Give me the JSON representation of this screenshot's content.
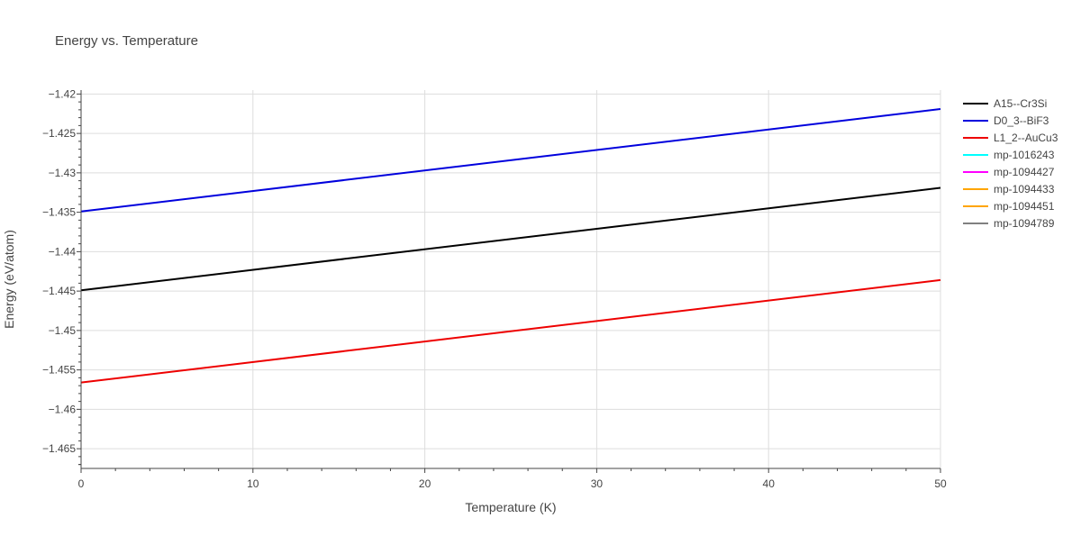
{
  "chart_data": {
    "type": "line",
    "title": "Energy vs. Temperature",
    "xlabel": "Temperature (K)",
    "ylabel": "Energy (eV/atom)",
    "xlim": [
      0,
      50
    ],
    "ylim": [
      -1.4675,
      -1.4195
    ],
    "x_ticks": [
      0,
      10,
      20,
      30,
      40,
      50
    ],
    "y_ticks": [
      -1.465,
      -1.46,
      -1.455,
      -1.45,
      -1.445,
      -1.44,
      -1.435,
      -1.43,
      -1.425,
      -1.42
    ],
    "y_tick_labels": [
      "−1.465",
      "−1.46",
      "−1.455",
      "−1.45",
      "−1.445",
      "−1.44",
      "−1.435",
      "−1.43",
      "−1.425",
      "−1.42"
    ],
    "grid": true,
    "legend_position": "top-right outside",
    "series": [
      {
        "name": "A15--Cr3Si",
        "color": "#000000",
        "x": [
          0,
          50
        ],
        "y": [
          -1.4449,
          -1.4319
        ]
      },
      {
        "name": "D0_3--BiF3",
        "color": "#0000dd",
        "x": [
          0,
          50
        ],
        "y": [
          -1.4349,
          -1.4219
        ]
      },
      {
        "name": "L1_2--AuCu3",
        "color": "#ee0000",
        "x": [
          0,
          50
        ],
        "y": [
          -1.4566,
          -1.4436
        ]
      },
      {
        "name": "mp-1016243",
        "color": "#00ffff",
        "x": [],
        "y": []
      },
      {
        "name": "mp-1094427",
        "color": "#ff00ff",
        "x": [],
        "y": []
      },
      {
        "name": "mp-1094433",
        "color": "#ffa500",
        "x": [],
        "y": []
      },
      {
        "name": "mp-1094451",
        "color": "#ffa500",
        "x": [],
        "y": []
      },
      {
        "name": "mp-1094789",
        "color": "#808080",
        "x": [],
        "y": []
      }
    ]
  }
}
